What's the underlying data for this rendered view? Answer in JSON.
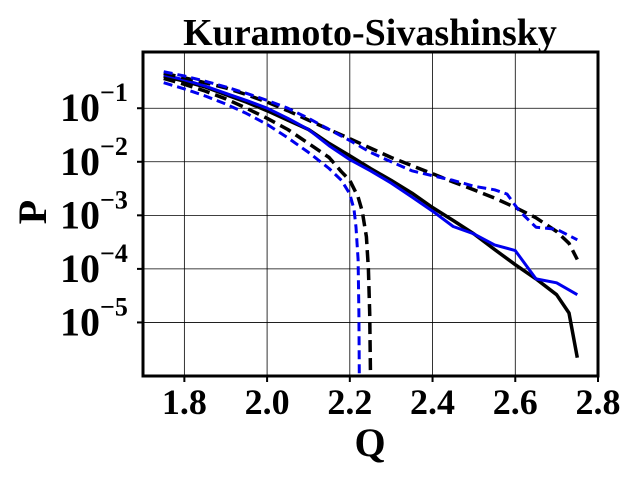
{
  "chart_data": {
    "type": "line",
    "title": "Kuramoto-Sivashinsky",
    "xlabel": "Q",
    "ylabel": "P",
    "yscale": "log",
    "xlim": [
      1.7,
      2.8
    ],
    "ylim_exp": [
      -6.0,
      0.05
    ],
    "grid": true,
    "legend": "none",
    "x_ticks": [
      "1.8",
      "2.0",
      "2.2",
      "2.4",
      "2.6",
      "2.8"
    ],
    "x_tick_values": [
      1.8,
      2.0,
      2.2,
      2.4,
      2.6,
      2.8
    ],
    "y_ticks": [
      {
        "base": "10",
        "exp": "−1",
        "value": 0.1
      },
      {
        "base": "10",
        "exp": "−2",
        "value": 0.01
      },
      {
        "base": "10",
        "exp": "−3",
        "value": 0.001
      },
      {
        "base": "10",
        "exp": "−4",
        "value": 0.0001
      },
      {
        "base": "10",
        "exp": "−5",
        "value": 1e-05
      }
    ],
    "series": [
      {
        "color": "#000000",
        "style": "solid",
        "points": [
          [
            1.75,
            0.4
          ],
          [
            1.8,
            0.32
          ],
          [
            1.85,
            0.25
          ],
          [
            1.9,
            0.18
          ],
          [
            1.95,
            0.13
          ],
          [
            2.0,
            0.09
          ],
          [
            2.05,
            0.06
          ],
          [
            2.1,
            0.04
          ],
          [
            2.15,
            0.022
          ],
          [
            2.2,
            0.013
          ],
          [
            2.25,
            0.0075
          ],
          [
            2.3,
            0.0045
          ],
          [
            2.35,
            0.0026
          ],
          [
            2.4,
            0.0014
          ],
          [
            2.45,
            0.0008
          ],
          [
            2.5,
            0.00045
          ],
          [
            2.55,
            0.00023
          ],
          [
            2.6,
            0.00012
          ],
          [
            2.65,
            6.5e-05
          ],
          [
            2.7,
            3.3e-05
          ],
          [
            2.73,
            1.5e-05
          ],
          [
            2.75,
            2.2e-06
          ]
        ]
      },
      {
        "color": "#0000ee",
        "style": "solid",
        "points": [
          [
            1.75,
            0.42
          ],
          [
            1.8,
            0.34
          ],
          [
            1.85,
            0.26
          ],
          [
            1.9,
            0.19
          ],
          [
            1.95,
            0.14
          ],
          [
            2.0,
            0.1
          ],
          [
            2.05,
            0.065
          ],
          [
            2.1,
            0.04
          ],
          [
            2.15,
            0.02
          ],
          [
            2.2,
            0.011
          ],
          [
            2.25,
            0.0068
          ],
          [
            2.3,
            0.004
          ],
          [
            2.35,
            0.0022
          ],
          [
            2.4,
            0.0012
          ],
          [
            2.45,
            0.00062
          ],
          [
            2.5,
            0.00045
          ],
          [
            2.55,
            0.00028
          ],
          [
            2.6,
            0.00022
          ],
          [
            2.65,
            6.5e-05
          ],
          [
            2.7,
            5.5e-05
          ],
          [
            2.75,
            3.3e-05
          ]
        ]
      },
      {
        "color": "#000000",
        "style": "dashed",
        "points": [
          [
            1.75,
            0.45
          ],
          [
            1.8,
            0.37
          ],
          [
            1.85,
            0.3
          ],
          [
            1.9,
            0.24
          ],
          [
            1.95,
            0.18
          ],
          [
            2.0,
            0.13
          ],
          [
            2.05,
            0.09
          ],
          [
            2.1,
            0.06
          ],
          [
            2.15,
            0.04
          ],
          [
            2.2,
            0.027
          ],
          [
            2.25,
            0.018
          ],
          [
            2.3,
            0.012
          ],
          [
            2.35,
            0.0085
          ],
          [
            2.4,
            0.006
          ],
          [
            2.45,
            0.0042
          ],
          [
            2.5,
            0.003
          ],
          [
            2.55,
            0.0021
          ],
          [
            2.6,
            0.0014
          ],
          [
            2.65,
            0.0009
          ],
          [
            2.7,
            0.0005
          ],
          [
            2.73,
            0.0003
          ],
          [
            2.75,
            0.00015
          ]
        ]
      },
      {
        "color": "#0000ee",
        "style": "dashed",
        "points": [
          [
            1.75,
            0.48
          ],
          [
            1.8,
            0.4
          ],
          [
            1.85,
            0.32
          ],
          [
            1.9,
            0.25
          ],
          [
            1.95,
            0.19
          ],
          [
            2.0,
            0.14
          ],
          [
            2.05,
            0.1
          ],
          [
            2.1,
            0.065
          ],
          [
            2.15,
            0.04
          ],
          [
            2.2,
            0.025
          ],
          [
            2.25,
            0.015
          ],
          [
            2.3,
            0.01
          ],
          [
            2.35,
            0.0068
          ],
          [
            2.4,
            0.0055
          ],
          [
            2.45,
            0.0045
          ],
          [
            2.5,
            0.0035
          ],
          [
            2.55,
            0.003
          ],
          [
            2.58,
            0.0025
          ],
          [
            2.61,
            0.0012
          ],
          [
            2.65,
            0.0006
          ],
          [
            2.7,
            0.00055
          ],
          [
            2.75,
            0.00035
          ]
        ]
      },
      {
        "color": "#000000",
        "style": "dashed",
        "points": [
          [
            1.75,
            0.36
          ],
          [
            1.8,
            0.28
          ],
          [
            1.85,
            0.21
          ],
          [
            1.9,
            0.15
          ],
          [
            1.95,
            0.1
          ],
          [
            2.0,
            0.065
          ],
          [
            2.05,
            0.04
          ],
          [
            2.1,
            0.022
          ],
          [
            2.15,
            0.012
          ],
          [
            2.18,
            0.0065
          ],
          [
            2.2,
            0.0045
          ],
          [
            2.22,
            0.0022
          ],
          [
            2.23,
            0.0012
          ],
          [
            2.24,
            0.0004
          ],
          [
            2.245,
            0.0001
          ],
          [
            2.248,
            1.5e-05
          ],
          [
            2.25,
            1e-06
          ]
        ]
      },
      {
        "color": "#0000ee",
        "style": "dashed",
        "points": [
          [
            1.75,
            0.3
          ],
          [
            1.8,
            0.23
          ],
          [
            1.85,
            0.17
          ],
          [
            1.9,
            0.12
          ],
          [
            1.95,
            0.08
          ],
          [
            2.0,
            0.05
          ],
          [
            2.05,
            0.028
          ],
          [
            2.1,
            0.015
          ],
          [
            2.15,
            0.0075
          ],
          [
            2.18,
            0.0045
          ],
          [
            2.2,
            0.0025
          ],
          [
            2.21,
            0.0013
          ],
          [
            2.215,
            0.0006
          ],
          [
            2.22,
            0.00015
          ],
          [
            2.222,
            1.5e-05
          ],
          [
            2.223,
            1e-06
          ]
        ]
      }
    ]
  }
}
